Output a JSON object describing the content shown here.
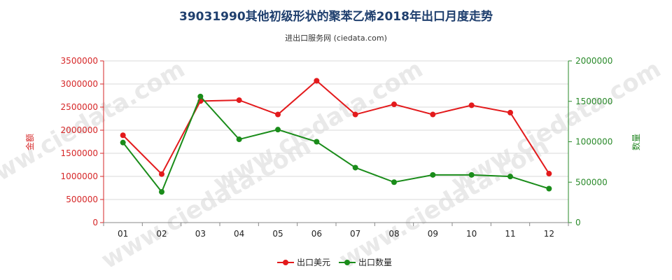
{
  "chart_data": {
    "type": "line",
    "title": "39031990其他初级形状的聚苯乙烯2018年出口月度走势",
    "subtitle": "进出口服务网 (ciedata.com)",
    "watermark": "www.ciedata.com",
    "categories": [
      "01",
      "02",
      "03",
      "04",
      "05",
      "06",
      "07",
      "08",
      "09",
      "10",
      "11",
      "12"
    ],
    "y_left": {
      "label": "金额",
      "ylim": [
        0,
        3500000
      ],
      "ticks": [
        0,
        500000,
        1000000,
        1500000,
        2000000,
        2500000,
        3000000,
        3500000
      ],
      "tick_labels": [
        "0",
        "500000",
        "1000000",
        "1500000",
        "2000000",
        "2500000",
        "3000000",
        "3500000"
      ]
    },
    "y_right": {
      "label": "数量",
      "ylim": [
        0,
        2000000
      ],
      "ticks": [
        0,
        500000,
        1000000,
        1500000,
        2000000
      ],
      "tick_labels": [
        "0",
        "500000",
        "1000000",
        "1500000",
        "2000000"
      ]
    },
    "series": [
      {
        "name": "出口美元",
        "axis": "left",
        "color": "#e31a1c",
        "values": [
          1890000,
          1050000,
          2630000,
          2650000,
          2340000,
          3070000,
          2340000,
          2560000,
          2340000,
          2540000,
          2380000,
          1060000
        ]
      },
      {
        "name": "出口数量",
        "axis": "right",
        "color": "#1a8c1a",
        "values": [
          990000,
          380000,
          1560000,
          1030000,
          1150000,
          1000000,
          680000,
          500000,
          590000,
          590000,
          570000,
          420000
        ]
      }
    ],
    "grid": true,
    "legend_position": "bottom-center"
  }
}
